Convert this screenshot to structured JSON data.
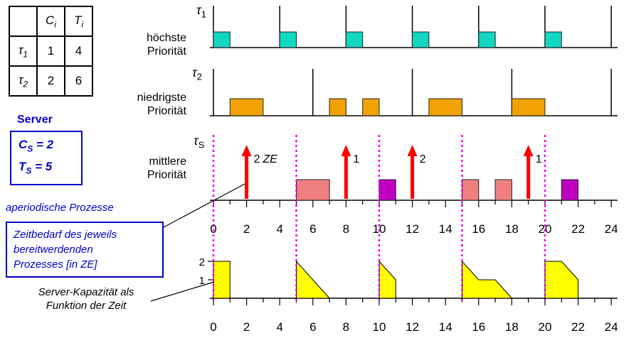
{
  "colors": {
    "accent_blue": "#0000cc",
    "tau1_fill": "#12d7c2",
    "tau2_fill": "#f0a202",
    "server_pink": "#f08080",
    "server_magenta": "#c000c0",
    "arrow_red": "#ff0000",
    "replenish_magenta": "#e800e8",
    "capacity_yellow": "#ffff00"
  },
  "table": {
    "col_c": {
      "sym": "C",
      "sub": "i"
    },
    "col_t": {
      "sym": "T",
      "sub": "i"
    },
    "row1": {
      "sym": "τ",
      "sub": "1",
      "c": "1",
      "t": "4"
    },
    "row2": {
      "sym": "τ",
      "sub": "2",
      "c": "2",
      "t": "6"
    }
  },
  "server": {
    "title": "Server",
    "cs": {
      "sym": "C",
      "sub": "S",
      "val": "= 2"
    },
    "ts": {
      "sym": "T",
      "sub": "S",
      "val": "= 5"
    }
  },
  "notes": {
    "aperiodic": "aperiodische Prozesse",
    "zeitbedarf": [
      "Zeitbedarf des jeweils",
      "bereitwerdenden",
      "Prozesses [in ZE]"
    ],
    "kapazitaet": [
      "Server-Kapazität als",
      "Funktion der Zeit"
    ]
  },
  "rows": {
    "tau1": {
      "sym": "τ",
      "sub": "1",
      "prio": [
        "höchste",
        "Priorität"
      ]
    },
    "tau2": {
      "sym": "τ",
      "sub": "2",
      "prio": [
        "niedrigste",
        "Priorität"
      ]
    },
    "tauS": {
      "sym": "τ",
      "sub": "S",
      "prio": [
        "mittlere",
        "Priorität"
      ]
    }
  },
  "diagram": {
    "axis_labels": [
      "0",
      "2",
      "4",
      "6",
      "8",
      "10",
      "12",
      "14",
      "16",
      "18",
      "20",
      "22",
      "24"
    ],
    "tau1": {
      "color": "#12d7c2",
      "releases": [
        0,
        4,
        8,
        12,
        16,
        20,
        24
      ],
      "exec": [
        [
          0,
          1
        ],
        [
          4,
          1
        ],
        [
          8,
          1
        ],
        [
          12,
          1
        ],
        [
          16,
          1
        ],
        [
          20,
          1
        ]
      ]
    },
    "tau2": {
      "color": "#f0a202",
      "releases": [
        0,
        6,
        12,
        18,
        24
      ],
      "exec": [
        [
          1,
          2
        ],
        [
          7,
          1
        ],
        [
          9,
          1
        ],
        [
          13,
          2
        ],
        [
          18,
          2
        ]
      ]
    },
    "server": {
      "replenish": [
        0,
        5,
        10,
        15,
        20
      ],
      "replenish_color": "#e800e8",
      "arrow_color": "#ff0000",
      "arrivals": [
        {
          "t": 2,
          "num": "2",
          "unit": "ZE"
        },
        {
          "t": 8,
          "num": "1",
          "unit": ""
        },
        {
          "t": 12,
          "num": "2",
          "unit": ""
        },
        {
          "t": 19,
          "num": "1",
          "unit": ""
        }
      ],
      "exec": [
        {
          "s": 5,
          "d": 2,
          "color": "#f08080"
        },
        {
          "s": 10,
          "d": 1,
          "color": "#c000c0"
        },
        {
          "s": 15,
          "d": 1,
          "color": "#f08080"
        },
        {
          "s": 17,
          "d": 1,
          "color": "#f08080"
        },
        {
          "s": 21,
          "d": 1,
          "color": "#c000c0"
        }
      ]
    },
    "capacity": {
      "color": "#ffff00",
      "yticks": [
        {
          "v": 2,
          "label": "2"
        },
        {
          "v": 1,
          "label": "1"
        }
      ],
      "shapes": [
        [
          [
            0,
            0
          ],
          [
            0,
            2
          ],
          [
            1,
            2
          ],
          [
            1,
            0
          ]
        ],
        [
          [
            5,
            0
          ],
          [
            5,
            2
          ],
          [
            7,
            0
          ]
        ],
        [
          [
            10,
            0
          ],
          [
            10,
            2
          ],
          [
            11,
            1
          ],
          [
            11,
            0
          ]
        ],
        [
          [
            15,
            0
          ],
          [
            15,
            2
          ],
          [
            16,
            1
          ],
          [
            17,
            1
          ],
          [
            18,
            0
          ]
        ],
        [
          [
            20,
            0
          ],
          [
            20,
            2
          ],
          [
            21,
            2
          ],
          [
            22,
            1
          ],
          [
            22,
            0
          ]
        ]
      ]
    }
  }
}
